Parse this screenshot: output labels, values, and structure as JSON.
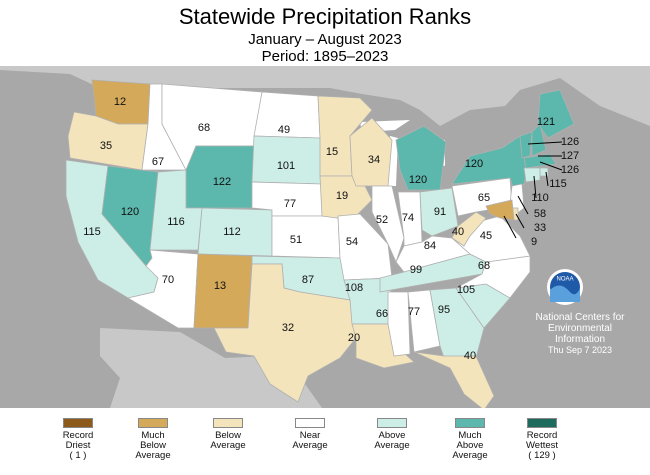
{
  "title": "Statewide Precipitation Ranks",
  "period_label": "January – August 2023",
  "base_period": "Period: 1895–2023",
  "agency": {
    "logo_text": "NOAA",
    "line1": "National Centers for",
    "line2": "Environmental",
    "line3": "Information",
    "date": "Thu Sep  7 2023"
  },
  "colors": {
    "record_driest": "#8c5a1b",
    "much_below": "#d4a95a",
    "below": "#f4e4bc",
    "near": "#ffffff",
    "above": "#cdeee6",
    "much_above": "#5cb8ac",
    "record_wettest": "#1e6b5e",
    "background": "#a8a8a8",
    "water": "#ffffff"
  },
  "legend": [
    {
      "line1": "Record",
      "line2": "Driest",
      "line3": "( 1 )",
      "color_key": "record_driest"
    },
    {
      "line1": "Much",
      "line2": "Below",
      "line3": "Average",
      "color_key": "much_below"
    },
    {
      "line1": "Below",
      "line2": "Average",
      "line3": "",
      "color_key": "below"
    },
    {
      "line1": "Near",
      "line2": "Average",
      "line3": "",
      "color_key": "near"
    },
    {
      "line1": "Above",
      "line2": "Average",
      "line3": "",
      "color_key": "above"
    },
    {
      "line1": "Much",
      "line2": "Above",
      "line3": "Average",
      "color_key": "much_above"
    },
    {
      "line1": "Record",
      "line2": "Wettest",
      "line3": "( 129 )",
      "color_key": "record_wettest"
    }
  ],
  "states": {
    "WA": {
      "rank": "12",
      "category": "much_below"
    },
    "OR": {
      "rank": "35",
      "category": "below"
    },
    "CA": {
      "rank": "115",
      "category": "above"
    },
    "NV": {
      "rank": "120",
      "category": "much_above"
    },
    "ID": {
      "rank": "67",
      "category": "near"
    },
    "MT": {
      "rank": "68",
      "category": "near"
    },
    "WY": {
      "rank": "122",
      "category": "much_above"
    },
    "UT": {
      "rank": "116",
      "category": "above"
    },
    "CO": {
      "rank": "112",
      "category": "above"
    },
    "AZ": {
      "rank": "70",
      "category": "near"
    },
    "NM": {
      "rank": "13",
      "category": "much_below"
    },
    "ND": {
      "rank": "49",
      "category": "near"
    },
    "SD": {
      "rank": "101",
      "category": "above"
    },
    "NE": {
      "rank": "77",
      "category": "near"
    },
    "KS": {
      "rank": "51",
      "category": "near"
    },
    "OK": {
      "rank": "87",
      "category": "above"
    },
    "TX": {
      "rank": "32",
      "category": "below"
    },
    "MN": {
      "rank": "15",
      "category": "below"
    },
    "IA": {
      "rank": "19",
      "category": "below"
    },
    "MO": {
      "rank": "54",
      "category": "near"
    },
    "AR": {
      "rank": "108",
      "category": "above"
    },
    "LA": {
      "rank": "20",
      "category": "below"
    },
    "WI": {
      "rank": "34",
      "category": "below"
    },
    "IL": {
      "rank": "52",
      "category": "near"
    },
    "MI": {
      "rank": "120",
      "category": "much_above"
    },
    "IN": {
      "rank": "74",
      "category": "near"
    },
    "OH": {
      "rank": "91",
      "category": "above"
    },
    "KY": {
      "rank": "84",
      "category": "near"
    },
    "TN": {
      "rank": "99",
      "category": "above"
    },
    "MS": {
      "rank": "66",
      "category": "near"
    },
    "AL": {
      "rank": "77",
      "category": "near"
    },
    "GA": {
      "rank": "95",
      "category": "above"
    },
    "FL": {
      "rank": "40",
      "category": "below"
    },
    "SC": {
      "rank": "105",
      "category": "above"
    },
    "NC": {
      "rank": "68",
      "category": "near"
    },
    "VA": {
      "rank": "45",
      "category": "near"
    },
    "WV": {
      "rank": "40",
      "category": "below"
    },
    "PA": {
      "rank": "65",
      "category": "near"
    },
    "NY": {
      "rank": "120",
      "category": "much_above"
    },
    "ME": {
      "rank": "121",
      "category": "much_above"
    },
    "VT": {
      "rank": "126",
      "category": "much_above"
    },
    "NH": {
      "rank": "127",
      "category": "much_above"
    },
    "MA": {
      "rank": "126",
      "category": "much_above"
    },
    "RI": {
      "rank": "115",
      "category": "above"
    },
    "CT": {
      "rank": "110",
      "category": "above"
    },
    "NJ": {
      "rank": "58",
      "category": "near"
    },
    "DE": {
      "rank": "33",
      "category": "below"
    },
    "MD": {
      "rank": "9",
      "category": "much_below"
    }
  }
}
